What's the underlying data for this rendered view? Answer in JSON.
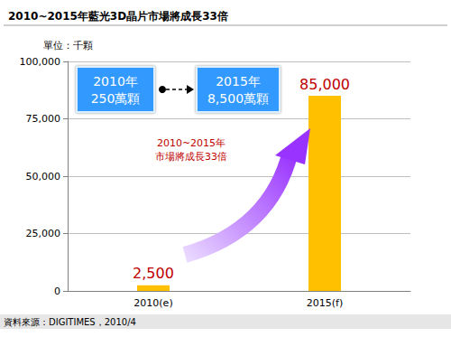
{
  "chart_data": {
    "type": "bar",
    "title": "2010~2015年藍光3D晶片市場將成長33倍",
    "y_label": "單位：千顆",
    "categories": [
      "2010(e)",
      "2015(f)"
    ],
    "values": [
      2500,
      85000
    ],
    "value_labels": [
      "2,500",
      "85,000"
    ],
    "color": "#FFC000",
    "ylim": [
      0,
      100000
    ],
    "yticks": [
      0,
      {
        "value": 25000,
        "label": "25,000"
      },
      {
        "value": 50000,
        "label": "50,000"
      },
      {
        "value": 75000,
        "label": "75,000"
      },
      {
        "value": 100000,
        "label": "100,000"
      }
    ],
    "grid": true,
    "data_labels": true,
    "annotations": [
      "2010年\n250萬顆",
      "2015年\n8,500萬顆",
      "2010~2015年\n市場將成長33倍"
    ],
    "source": "資料來源：DIGITIMES，2010/4"
  }
}
